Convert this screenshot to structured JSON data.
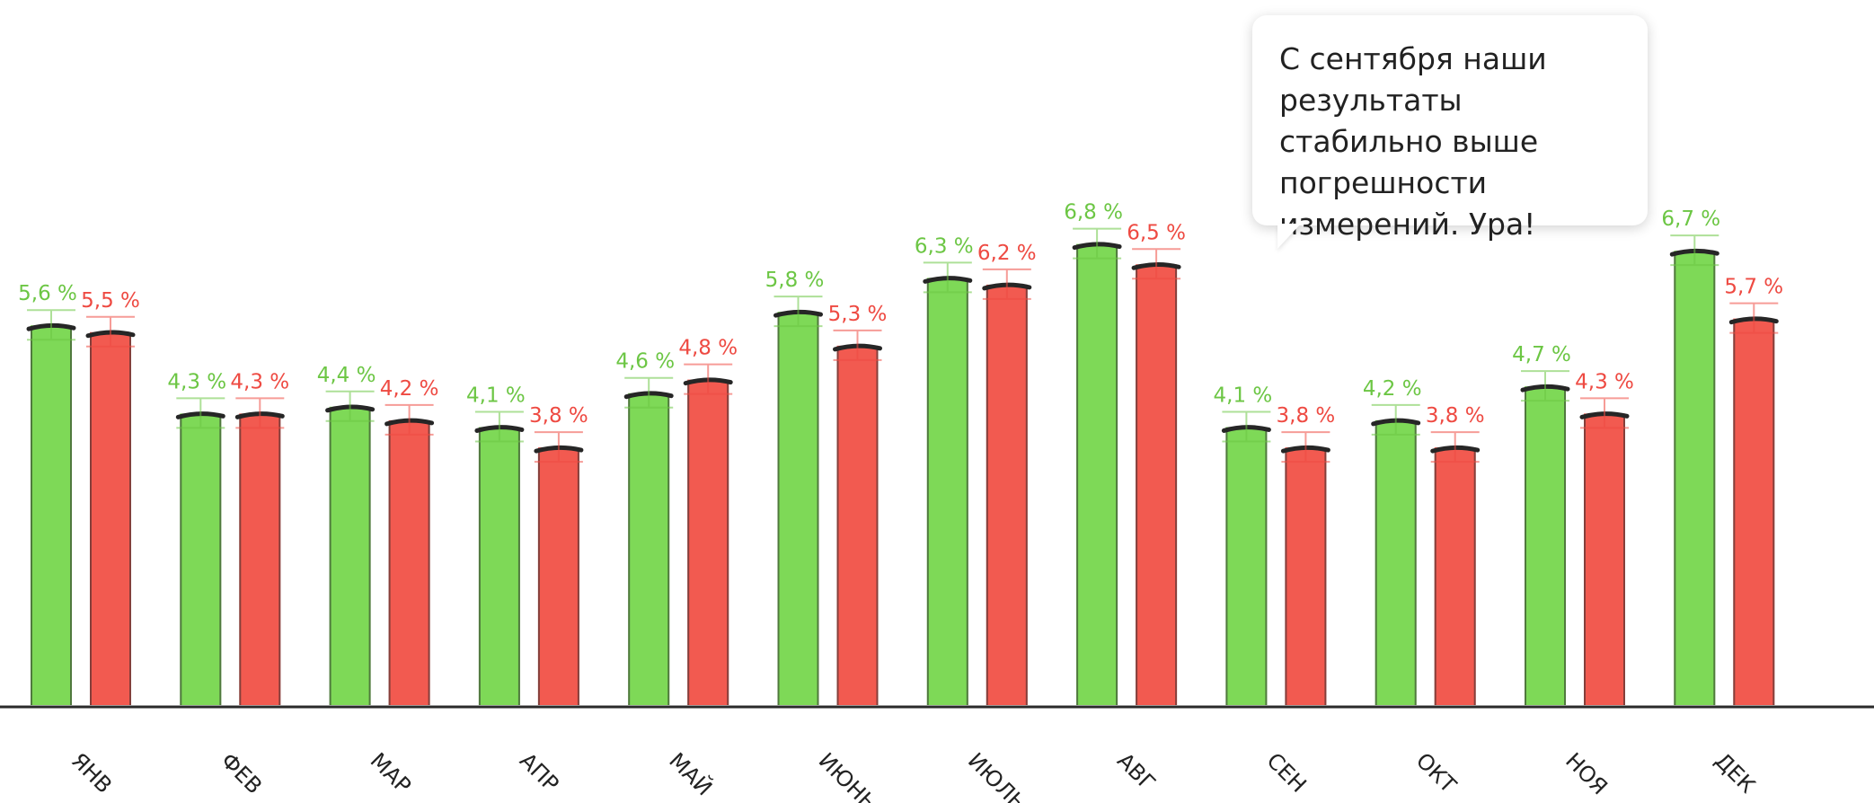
{
  "chart_data": {
    "type": "bar",
    "title": "",
    "xlabel": "",
    "ylabel": "",
    "ylim": [
      0,
      7.6
    ],
    "grid": false,
    "categories": [
      "ЯНВ",
      "ФЕВ",
      "МАР",
      "АПР",
      "МАЙ",
      "ИЮНЬ",
      "ИЮЛЬ",
      "АВГ",
      "СЕН",
      "ОКТ",
      "НОЯ",
      "ДЕК"
    ],
    "series": [
      {
        "name": "green",
        "color": "#7ed957",
        "label_color": "#6cc644",
        "values": [
          5.6,
          4.3,
          4.4,
          4.1,
          4.6,
          5.8,
          6.3,
          6.8,
          4.1,
          4.2,
          4.7,
          6.7
        ],
        "labels": [
          "5,6 %",
          "4,3 %",
          "4,4 %",
          "4,1 %",
          "4,6 %",
          "5,8 %",
          "6,3 %",
          "6,8 %",
          "4,1 %",
          "4,2 %",
          "4,7 %",
          "6,7 %"
        ]
      },
      {
        "name": "red",
        "color": "#f25a50",
        "label_color": "#ee4a42",
        "values": [
          5.5,
          4.3,
          4.2,
          3.8,
          4.8,
          5.3,
          6.2,
          6.5,
          3.8,
          3.8,
          4.3,
          5.7
        ],
        "labels": [
          "5,5 %",
          "4,3 %",
          "4,2 %",
          "3,8 %",
          "4,8 %",
          "5,3 %",
          "6,2 %",
          "6,5 %",
          "3,8 %",
          "3,8 %",
          "4,3 %",
          "5,7 %"
        ]
      }
    ],
    "annotation": "С сентября наши результаты стабильно выше погрешности измерений. Ура!"
  }
}
